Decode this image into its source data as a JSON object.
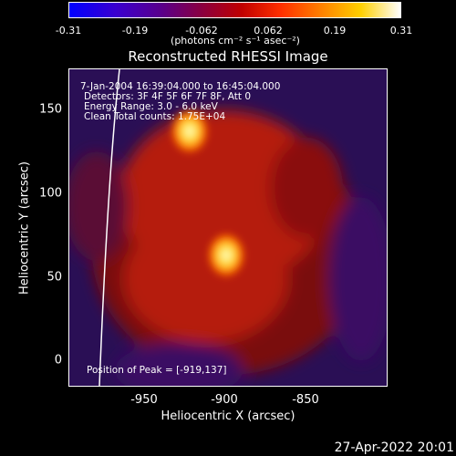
{
  "colorbar": {
    "ticks": [
      "-0.31",
      "-0.19",
      "-0.062",
      "0.062",
      "0.19",
      "0.31"
    ],
    "units": "(photons cm⁻² s⁻¹ asec⁻²)"
  },
  "title": "Reconstructed RHESSI Image",
  "annotations": {
    "time": "7-Jan-2004 16:39:04.000 to 16:45:04.000",
    "detectors": "Detectors: 3F 4F 5F 6F 7F 8F, Att 0",
    "energy": "Energy Range: 3.0 - 6.0 keV",
    "clean": "Clean    Total counts: 1.75E+04",
    "peak": "Position of Peak = [-919,137]"
  },
  "timestamp": "27-Apr-2022 20:01",
  "chart_data": {
    "type": "heatmap",
    "title": "Reconstructed RHESSI Image",
    "xlabel": "Heliocentric X (arcsec)",
    "ylabel": "Heliocentric Y (arcsec)",
    "xlim": [
      -988,
      -806
    ],
    "ylim": [
      -15,
      174
    ],
    "xticks": [
      -950,
      -900,
      -850
    ],
    "yticks": [
      0,
      50,
      100,
      150
    ],
    "colorbar_range": [
      -0.31,
      0.31
    ],
    "peaks": [
      {
        "x": -919,
        "y": 137
      },
      {
        "x": -898,
        "y": 63
      }
    ]
  }
}
